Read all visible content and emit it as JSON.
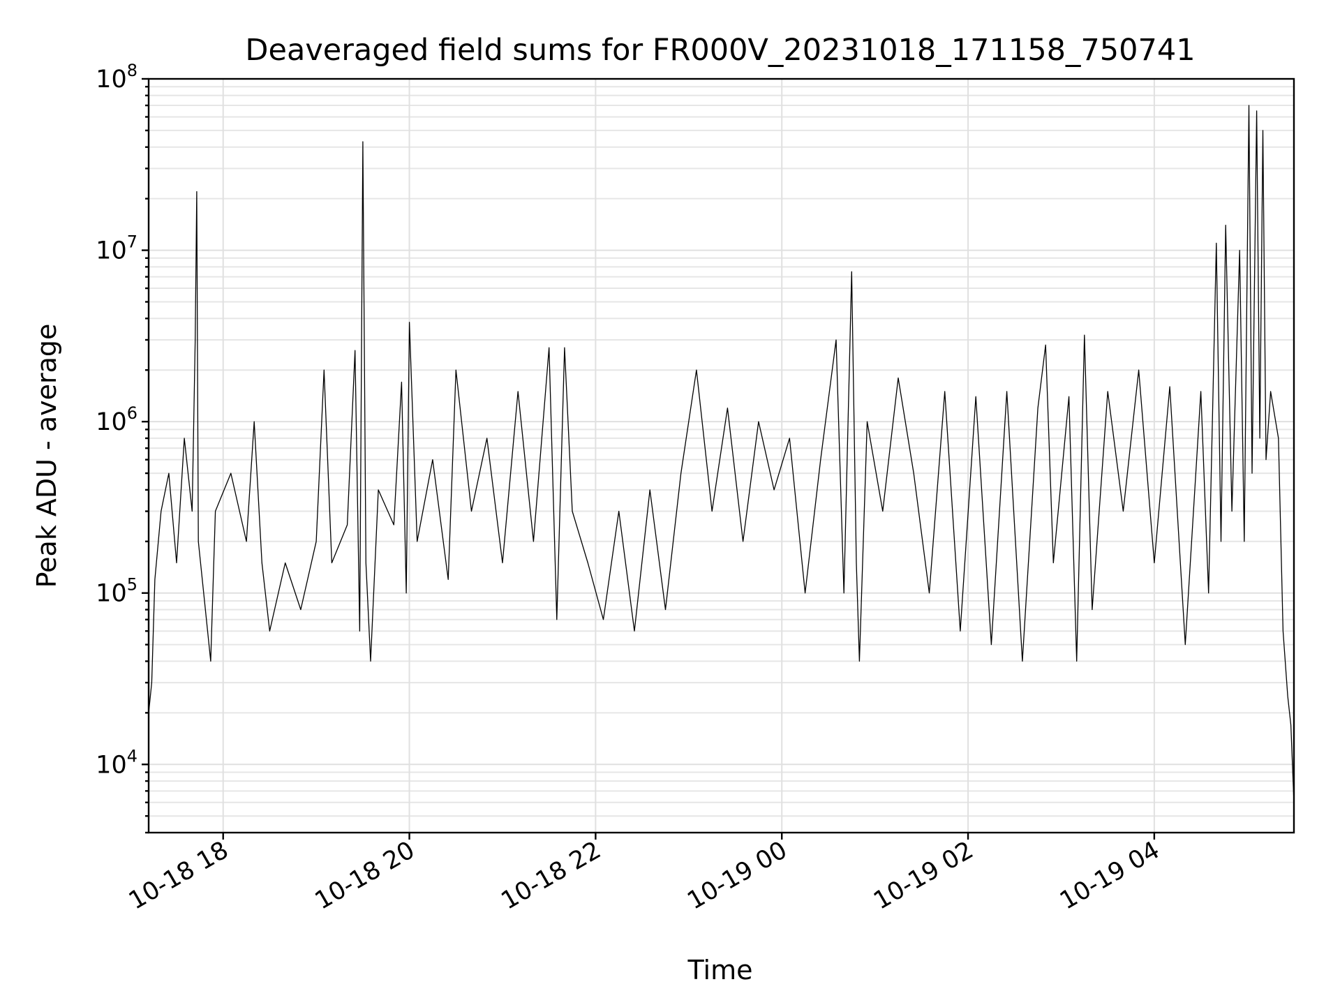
{
  "chart_data": {
    "type": "line",
    "title": "Deaveraged field sums for FR000V_20231018_171158_750741",
    "xlabel": "Time",
    "ylabel": "Peak ADU - average",
    "yscale": "log",
    "ylim": [
      4000,
      100000000
    ],
    "xlim": [
      "2023-10-18T17:12",
      "2023-10-19T05:30"
    ],
    "grid": true,
    "x_ticks": [
      {
        "value": "2023-10-18T18:00",
        "label": "10-18 18"
      },
      {
        "value": "2023-10-18T20:00",
        "label": "10-18 20"
      },
      {
        "value": "2023-10-18T22:00",
        "label": "10-18 22"
      },
      {
        "value": "2023-10-19T00:00",
        "label": "10-19 00"
      },
      {
        "value": "2023-10-19T02:00",
        "label": "10-19 02"
      },
      {
        "value": "2023-10-19T04:00",
        "label": "10-19 04"
      }
    ],
    "y_ticks": [
      {
        "value": 10000,
        "base": "10",
        "exp": "4"
      },
      {
        "value": 100000,
        "base": "10",
        "exp": "5"
      },
      {
        "value": 1000000,
        "base": "10",
        "exp": "6"
      },
      {
        "value": 10000000,
        "base": "10",
        "exp": "7"
      },
      {
        "value": 100000000,
        "base": "10",
        "exp": "8"
      }
    ],
    "series": [
      {
        "color": "#000000",
        "points": [
          [
            "2023-10-18T17:12",
            20000
          ],
          [
            "2023-10-18T17:14",
            30000
          ],
          [
            "2023-10-18T17:16",
            120000
          ],
          [
            "2023-10-18T17:20",
            300000
          ],
          [
            "2023-10-18T17:25",
            500000
          ],
          [
            "2023-10-18T17:30",
            150000
          ],
          [
            "2023-10-18T17:35",
            800000
          ],
          [
            "2023-10-18T17:40",
            300000
          ],
          [
            "2023-10-18T17:42",
            3000000
          ],
          [
            "2023-10-18T17:43",
            22000000
          ],
          [
            "2023-10-18T17:44",
            200000
          ],
          [
            "2023-10-18T17:48",
            90000
          ],
          [
            "2023-10-18T17:52",
            40000
          ],
          [
            "2023-10-18T17:55",
            300000
          ],
          [
            "2023-10-18T18:05",
            500000
          ],
          [
            "2023-10-18T18:15",
            200000
          ],
          [
            "2023-10-18T18:20",
            1000000
          ],
          [
            "2023-10-18T18:25",
            150000
          ],
          [
            "2023-10-18T18:30",
            60000
          ],
          [
            "2023-10-18T18:40",
            150000
          ],
          [
            "2023-10-18T18:50",
            80000
          ],
          [
            "2023-10-18T19:00",
            200000
          ],
          [
            "2023-10-18T19:05",
            2000000
          ],
          [
            "2023-10-18T19:10",
            150000
          ],
          [
            "2023-10-18T19:20",
            250000
          ],
          [
            "2023-10-18T19:25",
            2600000
          ],
          [
            "2023-10-18T19:28",
            60000
          ],
          [
            "2023-10-18T19:30",
            43000000
          ],
          [
            "2023-10-18T19:32",
            150000
          ],
          [
            "2023-10-18T19:35",
            40000
          ],
          [
            "2023-10-18T19:40",
            400000
          ],
          [
            "2023-10-18T19:50",
            250000
          ],
          [
            "2023-10-18T19:55",
            1700000
          ],
          [
            "2023-10-18T19:58",
            100000
          ],
          [
            "2023-10-18T20:00",
            3800000
          ],
          [
            "2023-10-18T20:05",
            200000
          ],
          [
            "2023-10-18T20:15",
            600000
          ],
          [
            "2023-10-18T20:25",
            120000
          ],
          [
            "2023-10-18T20:30",
            2000000
          ],
          [
            "2023-10-18T20:40",
            300000
          ],
          [
            "2023-10-18T20:50",
            800000
          ],
          [
            "2023-10-18T21:00",
            150000
          ],
          [
            "2023-10-18T21:10",
            1500000
          ],
          [
            "2023-10-18T21:20",
            200000
          ],
          [
            "2023-10-18T21:30",
            2700000
          ],
          [
            "2023-10-18T21:35",
            70000
          ],
          [
            "2023-10-18T21:40",
            2700000
          ],
          [
            "2023-10-18T21:45",
            300000
          ],
          [
            "2023-10-18T21:55",
            150000
          ],
          [
            "2023-10-18T22:05",
            70000
          ],
          [
            "2023-10-18T22:15",
            300000
          ],
          [
            "2023-10-18T22:25",
            60000
          ],
          [
            "2023-10-18T22:35",
            400000
          ],
          [
            "2023-10-18T22:45",
            80000
          ],
          [
            "2023-10-18T22:55",
            500000
          ],
          [
            "2023-10-18T23:05",
            2000000
          ],
          [
            "2023-10-18T23:15",
            300000
          ],
          [
            "2023-10-18T23:25",
            1200000
          ],
          [
            "2023-10-18T23:35",
            200000
          ],
          [
            "2023-10-18T23:45",
            1000000
          ],
          [
            "2023-10-18T23:55",
            400000
          ],
          [
            "2023-10-19T00:05",
            800000
          ],
          [
            "2023-10-19T00:15",
            100000
          ],
          [
            "2023-10-19T00:25",
            600000
          ],
          [
            "2023-10-19T00:35",
            3000000
          ],
          [
            "2023-10-19T00:40",
            100000
          ],
          [
            "2023-10-19T00:45",
            7500000
          ],
          [
            "2023-10-19T00:48",
            150000
          ],
          [
            "2023-10-19T00:50",
            40000
          ],
          [
            "2023-10-19T00:55",
            1000000
          ],
          [
            "2023-10-19T01:05",
            300000
          ],
          [
            "2023-10-19T01:15",
            1800000
          ],
          [
            "2023-10-19T01:25",
            500000
          ],
          [
            "2023-10-19T01:35",
            100000
          ],
          [
            "2023-10-19T01:45",
            1500000
          ],
          [
            "2023-10-19T01:55",
            60000
          ],
          [
            "2023-10-19T02:05",
            1400000
          ],
          [
            "2023-10-19T02:15",
            50000
          ],
          [
            "2023-10-19T02:25",
            1500000
          ],
          [
            "2023-10-19T02:35",
            40000
          ],
          [
            "2023-10-19T02:45",
            1200000
          ],
          [
            "2023-10-19T02:50",
            2800000
          ],
          [
            "2023-10-19T02:55",
            150000
          ],
          [
            "2023-10-19T03:05",
            1400000
          ],
          [
            "2023-10-19T03:10",
            40000
          ],
          [
            "2023-10-19T03:15",
            3200000
          ],
          [
            "2023-10-19T03:20",
            80000
          ],
          [
            "2023-10-19T03:30",
            1500000
          ],
          [
            "2023-10-19T03:40",
            300000
          ],
          [
            "2023-10-19T03:50",
            2000000
          ],
          [
            "2023-10-19T04:00",
            150000
          ],
          [
            "2023-10-19T04:10",
            1600000
          ],
          [
            "2023-10-19T04:20",
            50000
          ],
          [
            "2023-10-19T04:30",
            1500000
          ],
          [
            "2023-10-19T04:35",
            100000
          ],
          [
            "2023-10-19T04:40",
            11000000
          ],
          [
            "2023-10-19T04:43",
            200000
          ],
          [
            "2023-10-19T04:46",
            14000000
          ],
          [
            "2023-10-19T04:50",
            300000
          ],
          [
            "2023-10-19T04:55",
            10000000
          ],
          [
            "2023-10-19T04:58",
            200000
          ],
          [
            "2023-10-19T05:01",
            70000000
          ],
          [
            "2023-10-19T05:03",
            500000
          ],
          [
            "2023-10-19T05:06",
            65000000
          ],
          [
            "2023-10-19T05:08",
            800000
          ],
          [
            "2023-10-19T05:10",
            50000000
          ],
          [
            "2023-10-19T05:12",
            600000
          ],
          [
            "2023-10-19T05:15",
            1500000
          ],
          [
            "2023-10-19T05:20",
            800000
          ],
          [
            "2023-10-19T05:23",
            60000
          ],
          [
            "2023-10-19T05:26",
            25000
          ],
          [
            "2023-10-19T05:28",
            17000
          ],
          [
            "2023-10-19T05:30",
            6000
          ]
        ]
      }
    ]
  }
}
